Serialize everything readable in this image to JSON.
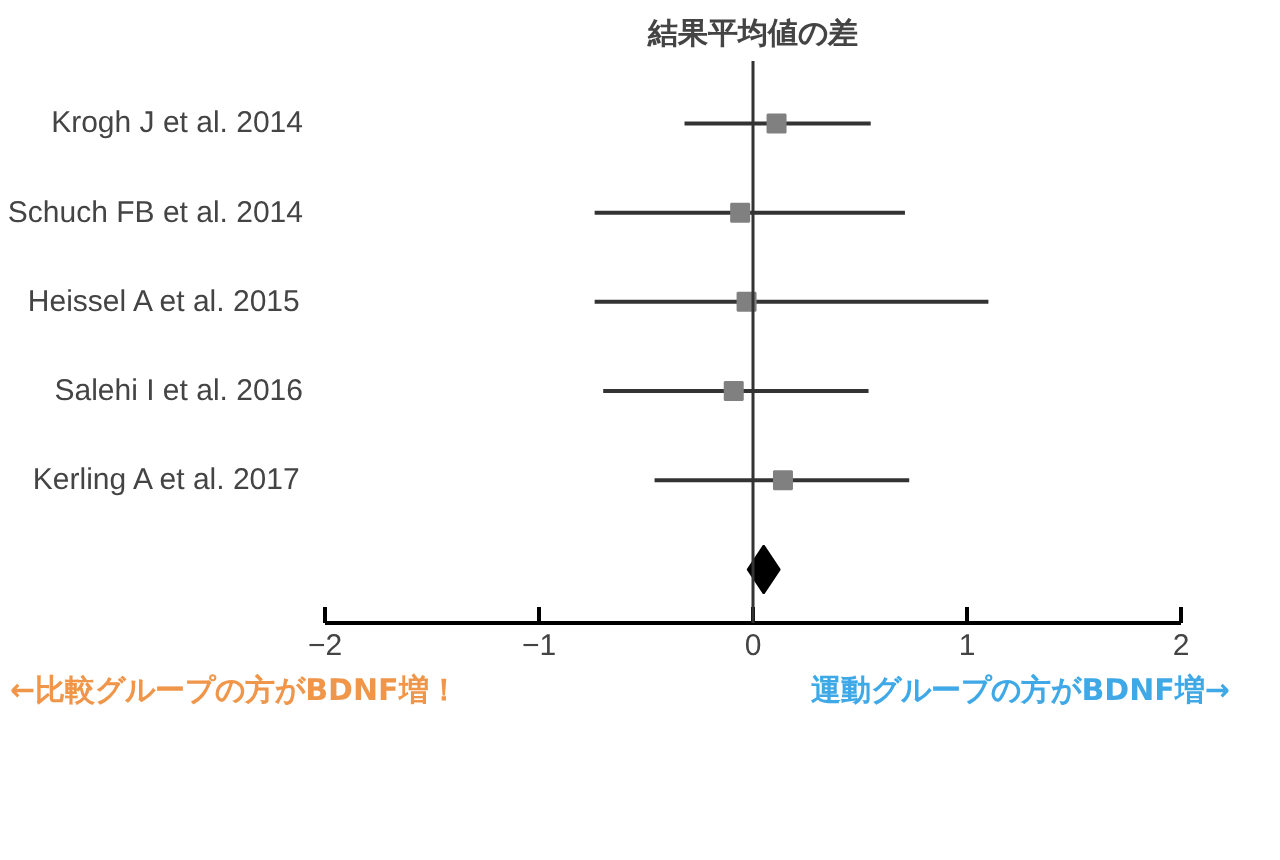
{
  "chart_data": {
    "type": "scatter",
    "orientation": "horizontal",
    "title": "結果平均値の差",
    "categories": [
      "Krogh J et al. 2014",
      "Schuch FB et al. 2014",
      "Heissel A et al. 2015",
      "Salehi I et al. 2016",
      "Kerling A et al. 2017",
      null
    ],
    "series": [
      {
        "color": "#808080",
        "marker": "square",
        "values": [
          0.11,
          -0.06,
          -0.03,
          -0.09,
          0.14,
          null
        ],
        "errors": [
          [
            -0.32,
            0.55
          ],
          [
            -0.74,
            0.71
          ],
          [
            -0.74,
            1.1
          ],
          [
            -0.7,
            0.54
          ],
          [
            -0.46,
            0.73
          ],
          null
        ]
      },
      {
        "color": "#000000",
        "marker": "diamond",
        "values": [
          null,
          null,
          null,
          null,
          null,
          0.05
        ]
      }
    ],
    "xlim": [
      -2,
      2
    ],
    "xticks": [
      -2,
      -1,
      0,
      1,
      2
    ],
    "ref_lines": [
      {
        "axis": "x",
        "value": 0
      }
    ],
    "grid": false,
    "annotations": [
      "←比較グループの方がBDNF増！",
      "運動グループの方がBDNF増→"
    ]
  }
}
